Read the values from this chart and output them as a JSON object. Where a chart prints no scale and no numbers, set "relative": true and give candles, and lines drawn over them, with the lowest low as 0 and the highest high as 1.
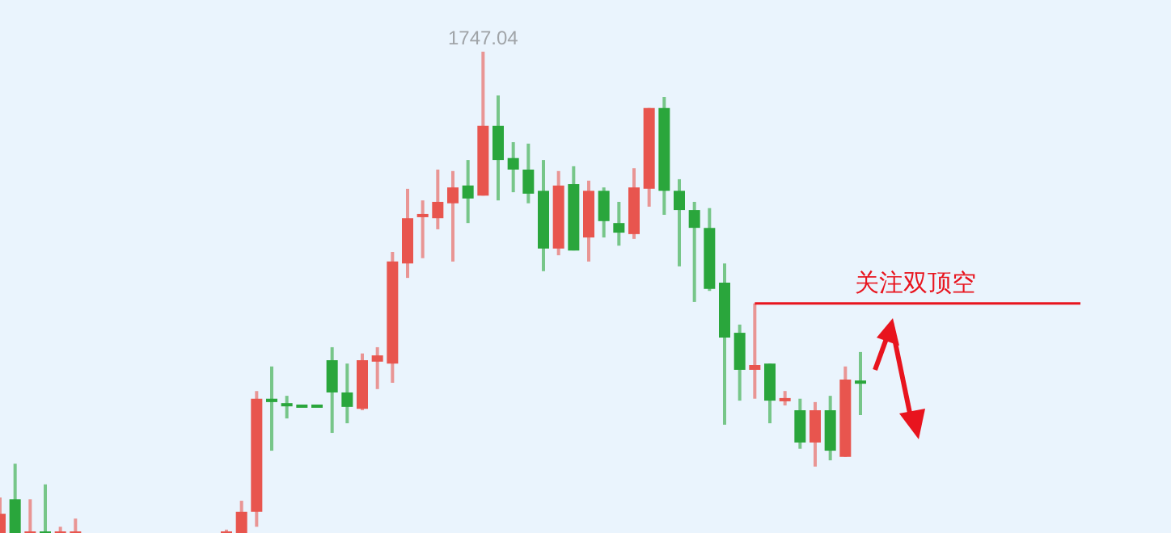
{
  "chart_data": {
    "type": "candlestick",
    "relative": true,
    "categories": [
      null,
      null,
      null,
      null,
      null,
      null,
      null,
      null,
      null,
      null,
      null,
      null,
      null,
      null,
      null,
      null,
      null,
      null,
      null,
      null,
      null,
      null,
      null,
      null,
      null,
      null,
      null,
      null,
      null,
      null,
      null,
      null,
      null,
      null,
      null,
      null,
      null,
      null,
      null,
      null,
      null,
      null,
      null,
      null,
      null,
      null,
      null,
      null,
      null,
      null,
      null,
      null,
      null,
      null,
      null,
      null,
      null,
      null
    ],
    "ohlc": [
      [
        0,
        0.074,
        0,
        0.04
      ],
      [
        0.07,
        0.144,
        0,
        0
      ],
      [
        0,
        0.07,
        0,
        0
      ],
      [
        0,
        0.101,
        0,
        0
      ],
      [
        0,
        0.013,
        0,
        0
      ],
      [
        0,
        0.03,
        0,
        0
      ],
      null,
      null,
      null,
      null,
      null,
      null,
      null,
      null,
      null,
      [
        0,
        0.007,
        0,
        0
      ],
      [
        0,
        0.067,
        0,
        0.044
      ],
      [
        0.044,
        0.295,
        0.013,
        0.279
      ],
      [
        0.279,
        0.346,
        0.171,
        0.272
      ],
      [
        0.268,
        0.285,
        0.238,
        0.265
      ],
      [
        0.265,
        0.265,
        0.262,
        0.262
      ],
      [
        0.265,
        0.265,
        0.262,
        0.262
      ],
      [
        0.359,
        0.386,
        0.208,
        0.292
      ],
      [
        0.292,
        0.352,
        0.228,
        0.262
      ],
      [
        0.258,
        0.373,
        0.255,
        0.359
      ],
      [
        0.356,
        0.386,
        0.299,
        0.369
      ],
      [
        0.352,
        0.584,
        0.312,
        0.564
      ],
      [
        0.56,
        0.715,
        0.53,
        0.654
      ],
      [
        0.658,
        0.691,
        0.571,
        0.661
      ],
      [
        0.654,
        0.755,
        0.631,
        0.688
      ],
      [
        0.685,
        0.752,
        0.564,
        0.718
      ],
      [
        0.722,
        0.775,
        0.644,
        0.695
      ],
      [
        0.701,
        1,
        0.701,
        0.846
      ],
      [
        0.846,
        0.909,
        0.691,
        0.775
      ],
      [
        0.779,
        0.812,
        0.708,
        0.755
      ],
      [
        0.755,
        0.809,
        0.685,
        0.705
      ],
      [
        0.711,
        0.775,
        0.544,
        0.591
      ],
      [
        0.591,
        0.752,
        0.577,
        0.722
      ],
      [
        0.725,
        0.762,
        0.587,
        0.587
      ],
      [
        0.614,
        0.732,
        0.564,
        0.711
      ],
      [
        0.711,
        0.718,
        0.614,
        0.648
      ],
      [
        0.644,
        0.688,
        0.597,
        0.624
      ],
      [
        0.621,
        0.758,
        0.611,
        0.718
      ],
      [
        0.715,
        0.883,
        0.678,
        0.883
      ],
      [
        0.883,
        0.906,
        0.661,
        0.711
      ],
      [
        0.711,
        0.735,
        0.554,
        0.671
      ],
      [
        0.671,
        0.688,
        0.48,
        0.634
      ],
      [
        0.634,
        0.675,
        0.503,
        0.507
      ],
      [
        0.52,
        0.56,
        0.225,
        0.406
      ],
      [
        0.416,
        0.433,
        0.275,
        0.339
      ],
      [
        0.339,
        0.477,
        0.279,
        0.349
      ],
      [
        0.352,
        0.352,
        0.228,
        0.275
      ],
      [
        0.275,
        0.295,
        0.265,
        0.279
      ],
      [
        0.255,
        0.279,
        0.175,
        0.188
      ],
      [
        0.188,
        0.272,
        0.138,
        0.255
      ],
      [
        0.255,
        0.285,
        0.151,
        0.171
      ],
      [
        0.158,
        0.346,
        0.158,
        0.319
      ],
      [
        0.315,
        0.376,
        0.245,
        0.312
      ]
    ],
    "colors": [
      "#e8554e",
      "#2aa63c",
      "#e8554e",
      "#2aa63c",
      "#e8554e",
      "#e8554e",
      null,
      null,
      null,
      null,
      null,
      null,
      null,
      null,
      null,
      "#e8554e",
      "#e8554e",
      "#e8554e",
      "#2aa63c",
      "#2aa63c",
      "#2aa63c",
      "#2aa63c",
      "#2aa63c",
      "#2aa63c",
      "#e8554e",
      "#e8554e",
      "#e8554e",
      "#e8554e",
      "#e8554e",
      "#e8554e",
      "#e8554e",
      "#2aa63c",
      "#e8554e",
      "#2aa63c",
      "#2aa63c",
      "#2aa63c",
      "#2aa63c",
      "#e8554e",
      "#2aa63c",
      "#e8554e",
      "#2aa63c",
      "#2aa63c",
      "#e8554e",
      "#e8554e",
      "#2aa63c",
      "#2aa63c",
      "#2aa63c",
      "#2aa63c",
      "#2aa63c",
      "#2aa63c",
      "#e8554e",
      "#2aa63c",
      "#e8554e",
      "#2aa63c",
      "#e8554e",
      "#2aa63c",
      "#e8554e",
      "#2aa63c"
    ],
    "annotations": [
      "1747.04"
    ],
    "ref_lines": [
      {
        "axis": "y",
        "value": 0.477,
        "label": "关注双顶空",
        "color": "#e8141e"
      }
    ]
  }
}
